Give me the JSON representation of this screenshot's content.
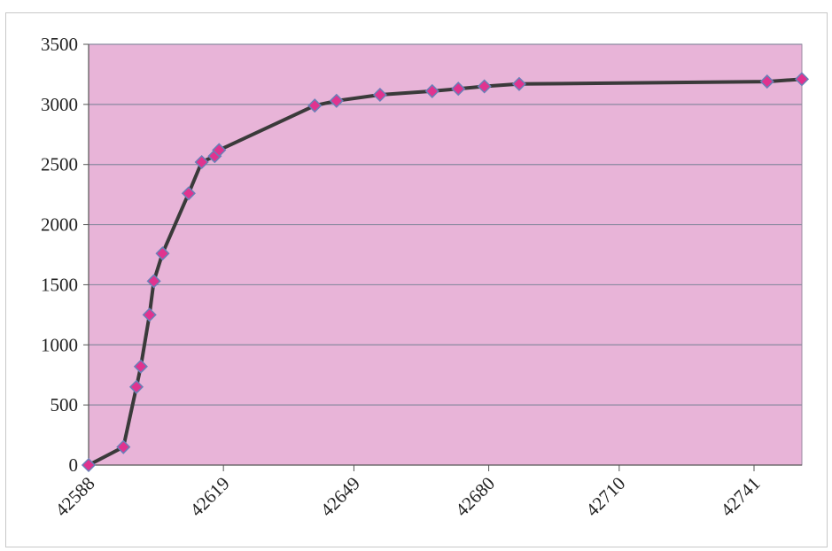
{
  "chart_data": {
    "type": "line",
    "title": "",
    "xlabel": "",
    "ylabel": "",
    "xlim": [
      42588,
      42752
    ],
    "ylim": [
      0,
      3500
    ],
    "x_ticks": [
      "42588",
      "42619",
      "42649",
      "42680",
      "42710",
      "42741"
    ],
    "y_ticks": [
      "0",
      "500",
      "1000",
      "1500",
      "2000",
      "2500",
      "3000",
      "3500"
    ],
    "grid": true,
    "legend": "none",
    "colors": {
      "plot_area": "#e8b4d8",
      "line": "#3a3a3a",
      "marker": "#e0338f",
      "marker_edge": "#6a7fb8",
      "grid": "#8a8aa0"
    },
    "series": [
      {
        "x": [
          42588,
          42596,
          42599,
          42600,
          42602,
          42603,
          42605,
          42611,
          42614,
          42617,
          42618,
          42640,
          42645,
          42655,
          42667,
          42673,
          42679,
          42687,
          42744,
          42752
        ],
        "y": [
          0,
          150,
          650,
          820,
          1250,
          1530,
          1760,
          2260,
          2520,
          2570,
          2620,
          2990,
          3030,
          3080,
          3110,
          3130,
          3150,
          3170,
          3190,
          3210
        ]
      }
    ]
  }
}
